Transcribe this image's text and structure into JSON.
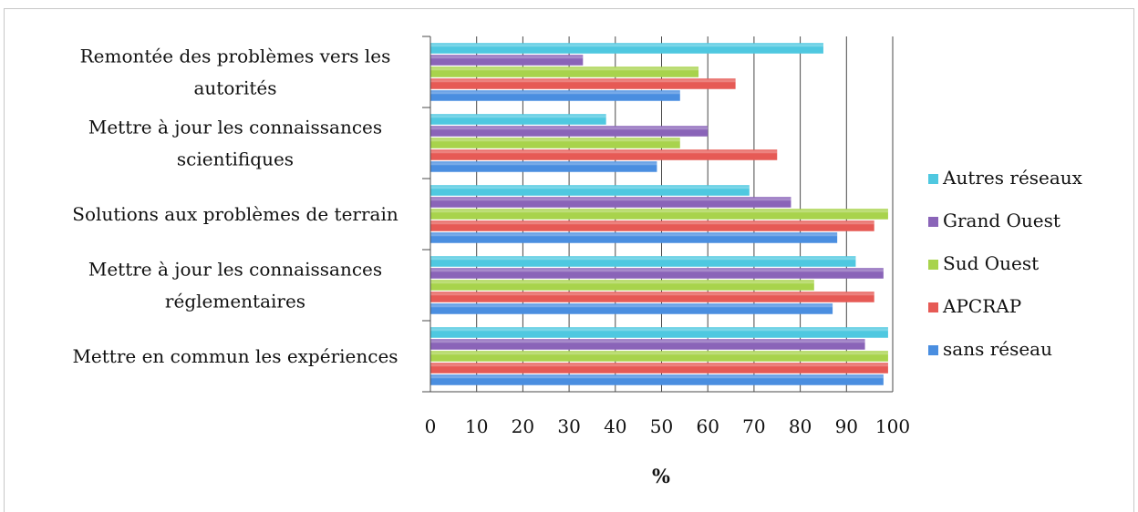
{
  "chart_data": {
    "type": "bar",
    "orientation": "horizontal",
    "categories": [
      "Remontée des problèmes vers les autorités",
      "Mettre à jour les connaissances scientifiques",
      "Solutions aux problèmes de terrain",
      "Mettre à jour les connaissances réglementaires",
      "Mettre en  commun les  expériences"
    ],
    "category_label_lines": [
      [
        "Remontée des problèmes vers les",
        "autorités"
      ],
      [
        "Mettre à jour les connaissances",
        "scientifiques"
      ],
      [
        "Solutions aux problèmes de terrain"
      ],
      [
        "Mettre à jour les connaissances",
        "réglementaires"
      ],
      [
        "Mettre en  commun les  expériences"
      ]
    ],
    "series": [
      {
        "name": "Autres réseaux",
        "color": "#4fc8e0",
        "values": [
          85,
          38,
          69,
          92,
          99
        ]
      },
      {
        "name": "Grand Ouest",
        "color": "#8a64b8",
        "values": [
          33,
          60,
          78,
          98,
          94
        ]
      },
      {
        "name": "Sud Ouest",
        "color": "#a8d34c",
        "values": [
          58,
          54,
          99,
          83,
          99
        ]
      },
      {
        "name": "APCRAP",
        "color": "#e65a55",
        "values": [
          66,
          75,
          96,
          96,
          99
        ]
      },
      {
        "name": "sans réseau",
        "color": "#4a8ee0",
        "values": [
          54,
          49,
          88,
          87,
          98
        ]
      }
    ],
    "legend_order": [
      "Autres réseaux",
      "Grand Ouest",
      "Sud Ouest",
      "APCRAP",
      "sans réseau"
    ],
    "xlabel": "%",
    "ylabel": "",
    "xlim": [
      0,
      100
    ],
    "xticks": [
      0,
      10,
      20,
      30,
      40,
      50,
      60,
      70,
      80,
      90,
      100
    ],
    "grid": "vertical major lines",
    "legend_position": "right"
  }
}
